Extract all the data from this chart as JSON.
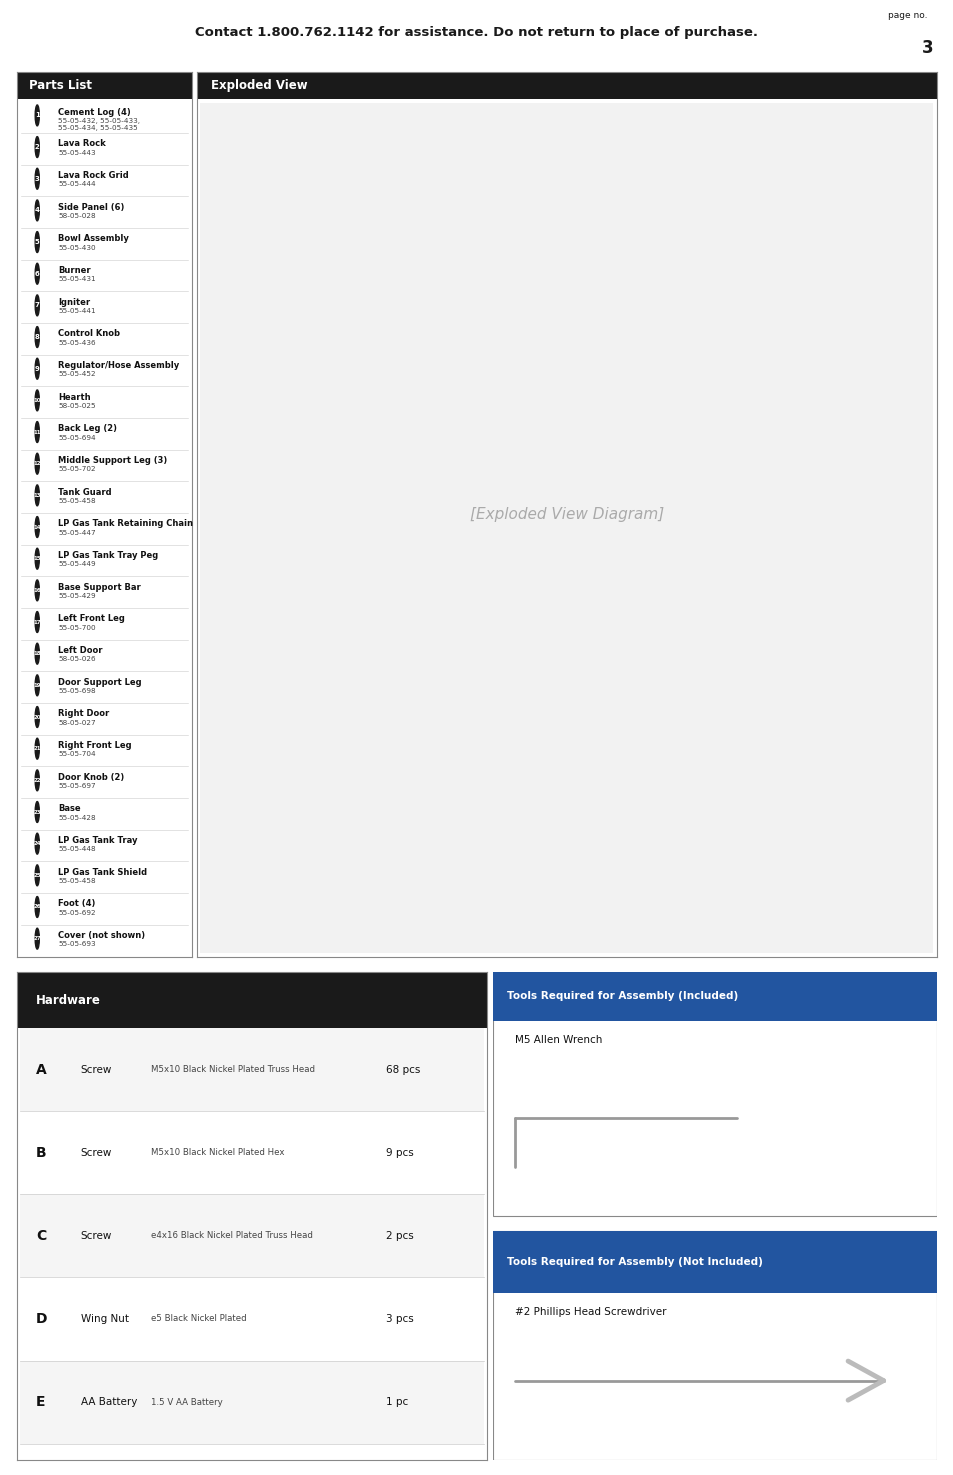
{
  "page_header_text": "Contact 1.800.762.1142 for assistance. Do not return to place of purchase.",
  "page_no_label": "page no.",
  "page_no": "3",
  "header_bg": "#b0b0b0",
  "header_text_color": "#1a1a1a",
  "page_bg": "#ffffff",
  "parts_list_header": "Parts List",
  "parts_list_header_bg": "#1a1a1a",
  "parts_list_header_color": "#ffffff",
  "parts": [
    {
      "num": "1",
      "name": "Cement Log (4)",
      "code": "55-05-432, 55-05-433,\n55-05-434, 55-05-435"
    },
    {
      "num": "2",
      "name": "Lava Rock",
      "code": "55-05-443"
    },
    {
      "num": "3",
      "name": "Lava Rock Grid",
      "code": "55-05-444"
    },
    {
      "num": "4",
      "name": "Side Panel (6)",
      "code": "58-05-028"
    },
    {
      "num": "5",
      "name": "Bowl Assembly",
      "code": "55-05-430"
    },
    {
      "num": "6",
      "name": "Burner",
      "code": "55-05-431"
    },
    {
      "num": "7",
      "name": "Igniter",
      "code": "55-05-441"
    },
    {
      "num": "8",
      "name": "Control Knob",
      "code": "55-05-436"
    },
    {
      "num": "9",
      "name": "Regulator/Hose Assembly",
      "code": "55-05-452"
    },
    {
      "num": "10",
      "name": "Hearth",
      "code": "58-05-025"
    },
    {
      "num": "11",
      "name": "Back Leg (2)",
      "code": "55-05-694"
    },
    {
      "num": "12",
      "name": "Middle Support Leg (3)",
      "code": "55-05-702"
    },
    {
      "num": "13",
      "name": "Tank Guard",
      "code": "55-05-458"
    },
    {
      "num": "14",
      "name": "LP Gas Tank Retaining Chain",
      "code": "55-05-447"
    },
    {
      "num": "15",
      "name": "LP Gas Tank Tray Peg",
      "code": "55-05-449"
    },
    {
      "num": "16",
      "name": "Base Support Bar",
      "code": "55-05-429"
    },
    {
      "num": "17",
      "name": "Left Front Leg",
      "code": "55-05-700"
    },
    {
      "num": "18",
      "name": "Left Door",
      "code": "58-05-026"
    },
    {
      "num": "19",
      "name": "Door Support Leg",
      "code": "55-05-698"
    },
    {
      "num": "20",
      "name": "Right Door",
      "code": "58-05-027"
    },
    {
      "num": "21",
      "name": "Right Front Leg",
      "code": "55-05-704"
    },
    {
      "num": "22",
      "name": "Door Knob (2)",
      "code": "55-05-697"
    },
    {
      "num": "23",
      "name": "Base",
      "code": "55-05-428"
    },
    {
      "num": "24",
      "name": "LP Gas Tank Tray",
      "code": "55-05-448"
    },
    {
      "num": "25",
      "name": "LP Gas Tank Shield",
      "code": "55-05-458"
    },
    {
      "num": "26",
      "name": "Foot (4)",
      "code": "55-05-692"
    },
    {
      "num": "27",
      "name": "Cover (not shown)",
      "code": "55-05-693"
    }
  ],
  "exploded_view_header": "Exploded View",
  "exploded_view_header_bg": "#1a1a1a",
  "exploded_view_header_color": "#ffffff",
  "hardware_header": "Hardware",
  "hardware_header_bg": "#1a1a1a",
  "hardware_header_color": "#ffffff",
  "hardware_items": [
    {
      "letter": "A",
      "name": "Screw",
      "desc": "M5x10 Black Nickel Plated Truss Head",
      "qty": "68 pcs"
    },
    {
      "letter": "B",
      "name": "Screw",
      "desc": "M5x10 Black Nickel Plated Hex",
      "qty": "9 pcs"
    },
    {
      "letter": "C",
      "name": "Screw",
      "desc": "e4x16 Black Nickel Plated Truss Head",
      "qty": "2 pcs"
    },
    {
      "letter": "D",
      "name": "Wing Nut",
      "desc": "e5 Black Nickel Plated",
      "qty": "3 pcs"
    },
    {
      "letter": "E",
      "name": "AA Battery",
      "desc": "1.5 V AA Battery",
      "qty": "1 pc"
    }
  ],
  "tools_included_header": "Tools Required for Assembly (Included)",
  "tools_included_header_bg": "#2255a0",
  "tools_included_header_color": "#ffffff",
  "tools_included_items": [
    "M5 Allen Wrench"
  ],
  "tools_not_included_header": "Tools Required for Assembly (Not Included)",
  "tools_not_included_header_bg": "#2255a0",
  "tools_not_included_header_color": "#ffffff",
  "tools_not_included_items": [
    "#2 Phillips Head Screwdriver"
  ],
  "section_border_color": "#888888",
  "divider_line_color": "#cccccc"
}
